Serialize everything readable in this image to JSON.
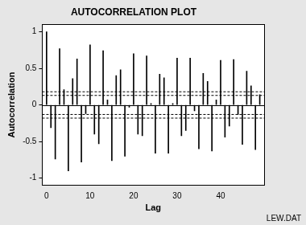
{
  "chart_data": {
    "type": "bar",
    "title": "AUTOCORRELATION PLOT",
    "x_label": "Lag",
    "y_label": "Autocorrelation",
    "x": [
      0,
      1,
      2,
      3,
      4,
      5,
      6,
      7,
      8,
      9,
      10,
      11,
      12,
      13,
      14,
      15,
      16,
      17,
      18,
      19,
      20,
      21,
      22,
      23,
      24,
      25,
      26,
      27,
      28,
      29,
      30,
      31,
      32,
      33,
      34,
      35,
      36,
      37,
      38,
      39,
      40,
      41,
      42,
      43,
      44,
      45,
      46,
      47,
      48,
      49
    ],
    "values": [
      1.0,
      -0.31,
      -0.74,
      0.77,
      0.21,
      -0.9,
      0.36,
      0.63,
      -0.78,
      -0.12,
      0.82,
      -0.4,
      -0.53,
      0.74,
      0.07,
      -0.76,
      0.4,
      0.48,
      -0.7,
      -0.03,
      0.7,
      -0.4,
      -0.42,
      0.67,
      0.02,
      -0.66,
      0.42,
      0.37,
      -0.66,
      0.02,
      0.64,
      -0.42,
      -0.35,
      0.64,
      -0.08,
      -0.6,
      0.43,
      0.32,
      -0.63,
      0.07,
      0.61,
      -0.44,
      -0.29,
      0.62,
      -0.13,
      -0.54,
      0.46,
      0.26,
      -0.61,
      0.14
    ],
    "color": "#000000",
    "xlim": [
      -1,
      50
    ],
    "xticks": [
      0,
      10,
      20,
      30,
      40
    ],
    "ylim": [
      -1.1,
      1.1
    ],
    "yticks": [
      -1,
      -0.5,
      0,
      0.5,
      1
    ],
    "reference_lines": {
      "values": [
        0.13,
        -0.13,
        0.18,
        -0.18
      ],
      "line_style": "dashed"
    },
    "grid": false,
    "annotations": [
      "LEW.DAT"
    ]
  }
}
